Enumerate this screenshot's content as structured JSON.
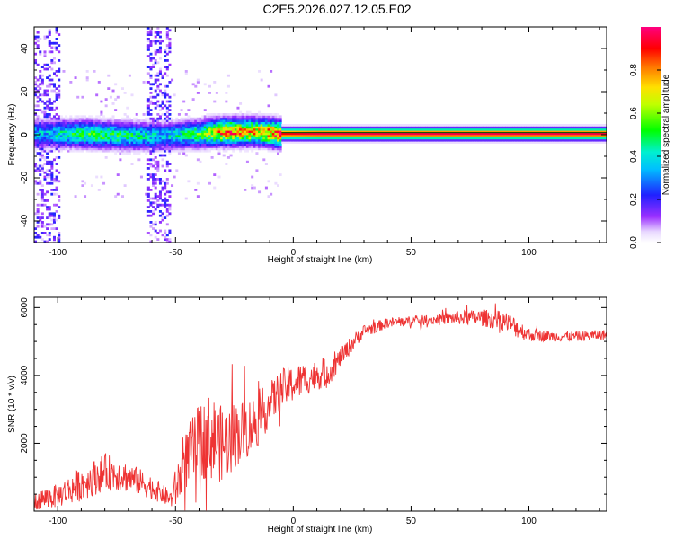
{
  "title": "C2E5.2026.027.12.05.E02",
  "chart_data": [
    {
      "type": "heatmap",
      "xlabel": "Height of straight line (km)",
      "ylabel": "Frequency (Hz)",
      "xlim": [
        -110,
        133
      ],
      "ylim": [
        -50,
        50
      ],
      "xticks": [
        -100,
        -50,
        0,
        50,
        100
      ],
      "xtick_labels": [
        "-100",
        "-50",
        "0",
        "50",
        "100"
      ],
      "yticks": [
        -40,
        -20,
        0,
        20,
        40
      ],
      "ytick_labels": [
        "-40",
        "-20",
        "0",
        "20",
        "40"
      ],
      "colorbar": {
        "label": "Normalized spectral amplitude",
        "range": [
          0,
          1
        ],
        "ticks": [
          0,
          0.2,
          0.4,
          0.6,
          0.8
        ],
        "tick_labels": [
          "0.0",
          "0.2",
          "0.4",
          "0.6",
          "0.8"
        ],
        "colormap": "rainbow (white-violet-blue-cyan-green-yellow-red-magenta)"
      },
      "ridge": {
        "description": "spectral energy concentrated near 0 Hz along the full height range",
        "points": [
          {
            "x": -105,
            "freq": 0,
            "amp": 0.35
          },
          {
            "x": -90,
            "freq": 0,
            "amp": 0.5
          },
          {
            "x": -70,
            "freq": -1,
            "amp": 0.45
          },
          {
            "x": -55,
            "freq": -1,
            "amp": 0.35
          },
          {
            "x": -40,
            "freq": 0,
            "amp": 0.5
          },
          {
            "x": -30,
            "freq": 1,
            "amp": 0.8
          },
          {
            "x": -15,
            "freq": 1,
            "amp": 0.7
          },
          {
            "x": -5,
            "freq": 0,
            "amp": 0.9
          },
          {
            "x": 10,
            "freq": 0,
            "amp": 0.95
          },
          {
            "x": 50,
            "freq": 0,
            "amp": 0.95
          },
          {
            "x": 100,
            "freq": 0,
            "amp": 0.95
          },
          {
            "x": 133,
            "freq": 0,
            "amp": 0.95
          }
        ],
        "noise_bands": [
          [
            -110,
            -100
          ],
          [
            -62,
            -53
          ]
        ]
      }
    },
    {
      "type": "line",
      "xlabel": "Height of straight line (km)",
      "ylabel": "SNR (10 * v/v)",
      "xlim": [
        -110,
        133
      ],
      "ylim": [
        0,
        6300
      ],
      "xticks": [
        -100,
        -50,
        0,
        50,
        100
      ],
      "xtick_labels": [
        "-100",
        "-50",
        "0",
        "50",
        "100"
      ],
      "yticks": [
        2000,
        4000,
        6000
      ],
      "ytick_labels": [
        "2000",
        "4000",
        "6000"
      ],
      "color": "#ee3333",
      "series": [
        {
          "x": [
            -110,
            -100,
            -90,
            -80,
            -75,
            -70,
            -60,
            -52,
            -50,
            -45,
            -40,
            -35,
            -30,
            -25,
            -20,
            -15,
            -10,
            -5,
            0,
            5,
            10,
            15,
            20,
            25,
            30,
            40,
            50,
            60,
            70,
            80,
            90,
            95,
            100,
            110,
            120,
            133
          ],
          "y": [
            300,
            450,
            800,
            1150,
            1100,
            1000,
            700,
            350,
            650,
            1600,
            2050,
            2200,
            1950,
            2250,
            2400,
            2700,
            3150,
            3600,
            3750,
            3900,
            4000,
            4100,
            4500,
            4950,
            5300,
            5550,
            5600,
            5650,
            5700,
            5700,
            5600,
            5400,
            5200,
            5150,
            5150,
            5200
          ],
          "spread": [
            300,
            350,
            500,
            550,
            500,
            450,
            350,
            250,
            600,
            900,
            1100,
            1300,
            1100,
            1000,
            900,
            800,
            650,
            600,
            550,
            500,
            450,
            400,
            300,
            250,
            200,
            150,
            150,
            150,
            200,
            250,
            300,
            300,
            200,
            150,
            150,
            150
          ]
        }
      ]
    }
  ]
}
